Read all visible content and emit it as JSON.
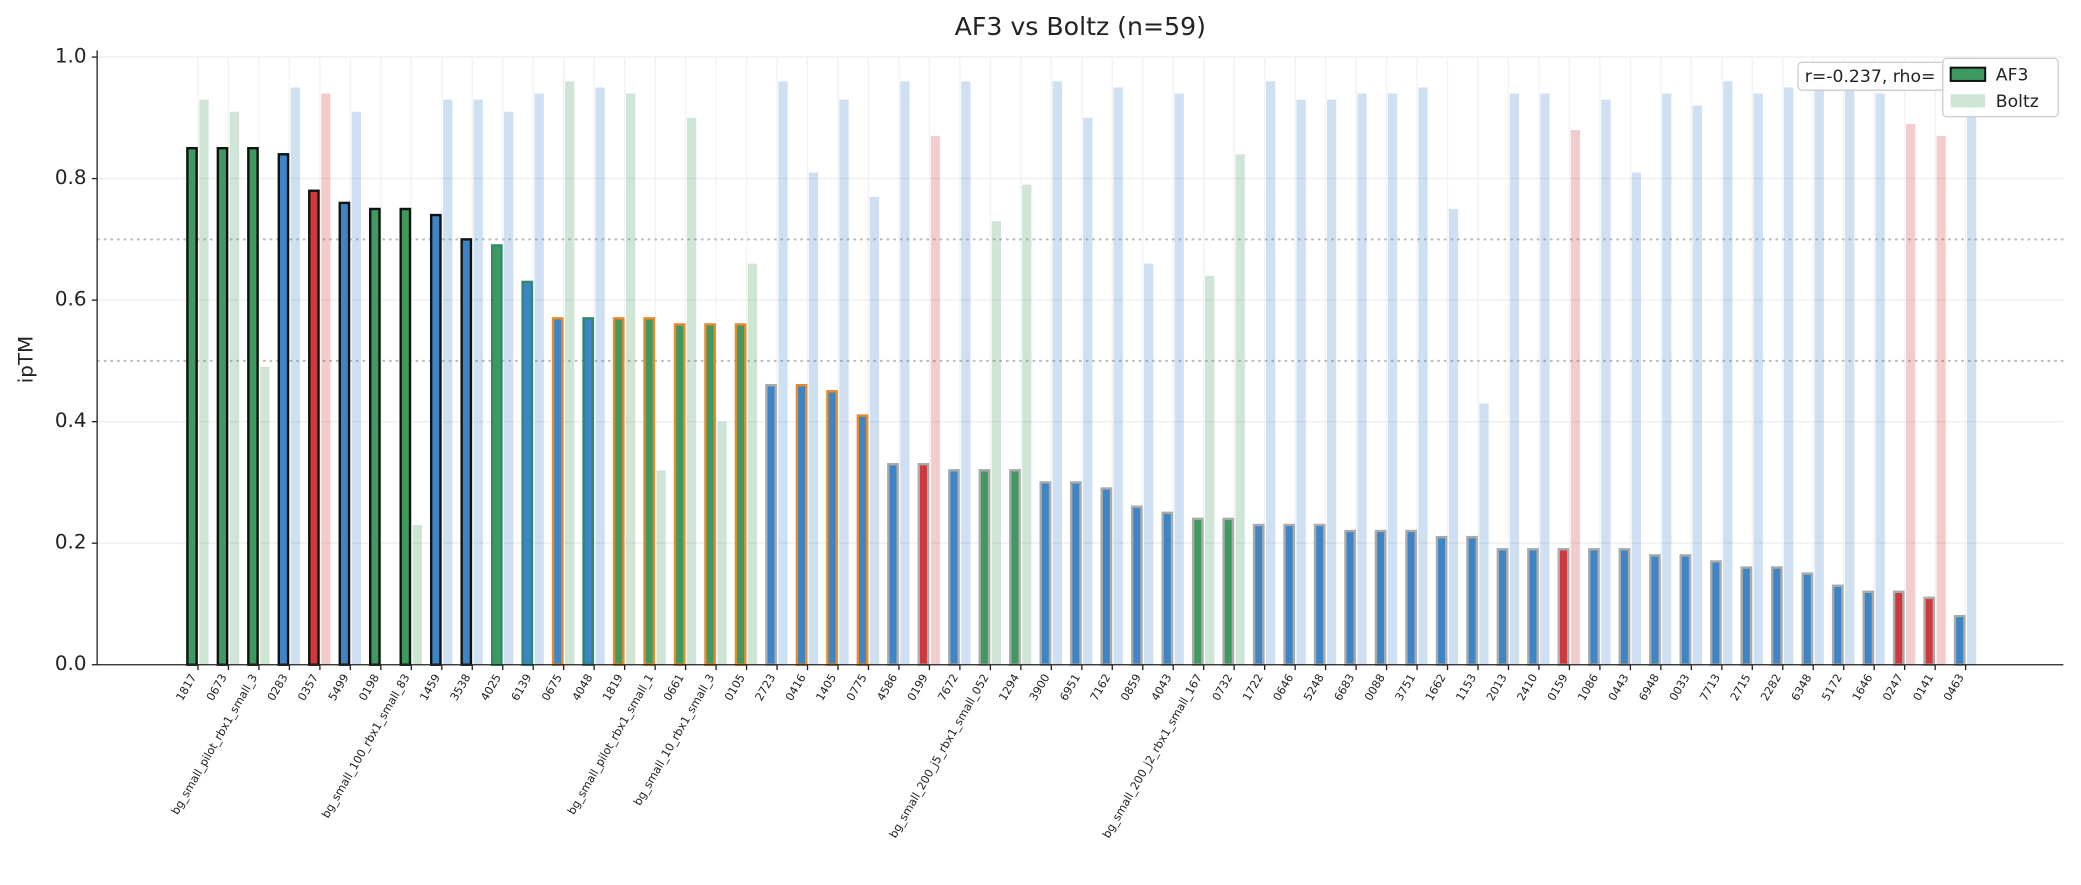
{
  "chart_data": {
    "type": "bar",
    "title": "AF3 vs Boltz (n=59)",
    "ylabel": "ipTM",
    "annotation": "r=-0.237, rho=",
    "categories": [
      "1817",
      "0673",
      "bg_small_pilot_rbx1_small_3",
      "0283",
      "0357",
      "5499",
      "0198",
      "bg_small_100_rbx1_small_83",
      "1459",
      "3538",
      "4025",
      "6139",
      "0675",
      "4048",
      "1819",
      "bg_small_pilot_rbx1_small_1",
      "0661",
      "bg_small_10_rbx1_small_3",
      "0105",
      "2723",
      "0416",
      "1405",
      "0775",
      "4586",
      "0199",
      "7672",
      "bg_small_200_j5_rbx1_small_052",
      "1294",
      "3900",
      "6951",
      "7162",
      "0859",
      "4043",
      "bg_small_200_j2_rbx1_small_167",
      "0732",
      "1722",
      "0646",
      "5248",
      "6683",
      "0088",
      "3751",
      "1662",
      "1153",
      "2013",
      "2410",
      "0159",
      "1086",
      "0443",
      "6948",
      "0033",
      "7713",
      "2715",
      "2282",
      "6348",
      "5172",
      "1646",
      "0247",
      "0141",
      "0463"
    ],
    "series": [
      {
        "name": "AF3",
        "color": "#3f9a5f",
        "opacity": 1,
        "legend_edgecolor": "#111111",
        "values": [
          0.85,
          0.85,
          0.85,
          0.84,
          0.78,
          0.76,
          0.75,
          0.75,
          0.74,
          0.7,
          0.69,
          0.63,
          0.57,
          0.57,
          0.57,
          0.57,
          0.56,
          0.56,
          0.56,
          0.46,
          0.46,
          0.45,
          0.41,
          0.33,
          0.33,
          0.32,
          0.32,
          0.32,
          0.3,
          0.3,
          0.29,
          0.26,
          0.25,
          0.24,
          0.24,
          0.23,
          0.23,
          0.23,
          0.22,
          0.22,
          0.22,
          0.21,
          0.21,
          0.19,
          0.19,
          0.19,
          0.19,
          0.19,
          0.18,
          0.18,
          0.17,
          0.16,
          0.16,
          0.15,
          0.13,
          0.12,
          0.12,
          0.11,
          0.08
        ],
        "colors": [
          "#3f9a5f",
          "#3f9a5f",
          "#3f9a5f",
          "#3d85c6",
          "#d0393b",
          "#3d85c6",
          "#3f9a5f",
          "#3f9a5f",
          "#3d85c6",
          "#3d85c6",
          "#3f9a5f",
          "#3d85c6",
          "#3d85c6",
          "#3d85c6",
          "#3f9a5f",
          "#3f9a5f",
          "#3f9a5f",
          "#3f9a5f",
          "#3f9a5f",
          "#3d85c6",
          "#3d85c6",
          "#3d85c6",
          "#3d85c6",
          "#3d85c6",
          "#d0393b",
          "#3d85c6",
          "#3f9a5f",
          "#3f9a5f",
          "#3d85c6",
          "#3d85c6",
          "#3d85c6",
          "#3d85c6",
          "#3d85c6",
          "#3f9a5f",
          "#3f9a5f",
          "#3d85c6",
          "#3d85c6",
          "#3d85c6",
          "#3d85c6",
          "#3d85c6",
          "#3d85c6",
          "#3d85c6",
          "#3d85c6",
          "#3d85c6",
          "#3d85c6",
          "#d0393b",
          "#3d85c6",
          "#3d85c6",
          "#3d85c6",
          "#3d85c6",
          "#3d85c6",
          "#3d85c6",
          "#3d85c6",
          "#3d85c6",
          "#3d85c6",
          "#3d85c6",
          "#d0393b",
          "#d0393b",
          "#3d85c6"
        ],
        "edgecolors": [
          "#111111",
          "#111111",
          "#111111",
          "#111111",
          "#111111",
          "#111111",
          "#111111",
          "#111111",
          "#111111",
          "#111111",
          "#2f8a6a",
          "#2f8a6a",
          "#e8892b",
          "#2f8a6a",
          "#e8892b",
          "#e8892b",
          "#e8892b",
          "#e8892b",
          "#e8892b",
          "#aaaaaa",
          "#e8892b",
          "#e8892b",
          "#e8892b",
          "#aaaaaa",
          "#aaaaaa",
          "#aaaaaa",
          "#aaaaaa",
          "#aaaaaa",
          "#aaaaaa",
          "#aaaaaa",
          "#aaaaaa",
          "#aaaaaa",
          "#aaaaaa",
          "#aaaaaa",
          "#aaaaaa",
          "#aaaaaa",
          "#aaaaaa",
          "#aaaaaa",
          "#aaaaaa",
          "#aaaaaa",
          "#aaaaaa",
          "#aaaaaa",
          "#aaaaaa",
          "#aaaaaa",
          "#aaaaaa",
          "#aaaaaa",
          "#aaaaaa",
          "#aaaaaa",
          "#aaaaaa",
          "#aaaaaa",
          "#aaaaaa",
          "#aaaaaa",
          "#aaaaaa",
          "#aaaaaa",
          "#aaaaaa",
          "#aaaaaa",
          "#aaaaaa",
          "#aaaaaa",
          "#aaaaaa"
        ]
      },
      {
        "name": "Boltz",
        "color": "#3f9a5f",
        "opacity": 0.25,
        "legend_edgecolor": "none",
        "values": [
          0.93,
          0.91,
          0.49,
          0.95,
          0.94,
          0.91,
          null,
          0.23,
          0.93,
          0.93,
          0.91,
          0.94,
          0.96,
          0.95,
          0.94,
          0.32,
          0.9,
          0.4,
          0.66,
          0.96,
          0.81,
          0.93,
          0.77,
          0.96,
          0.87,
          0.96,
          0.73,
          0.79,
          0.96,
          0.9,
          0.95,
          0.66,
          0.94,
          0.64,
          0.84,
          0.96,
          0.93,
          0.93,
          0.94,
          0.94,
          0.95,
          0.75,
          0.43,
          0.94,
          0.94,
          0.88,
          0.93,
          0.81,
          0.94,
          0.92,
          0.96,
          0.94,
          0.95,
          0.95,
          0.95,
          0.94,
          0.89,
          0.87,
          0.92
        ],
        "colors": [
          "#3f9a5f",
          "#3f9a5f",
          "#3f9a5f",
          "#3d85c6",
          "#d0393b",
          "#3d85c6",
          "#3d85c6",
          "#3f9a5f",
          "#3d85c6",
          "#3d85c6",
          "#3d85c6",
          "#3d85c6",
          "#3f9a5f",
          "#3d85c6",
          "#3f9a5f",
          "#3f9a5f",
          "#3f9a5f",
          "#3f9a5f",
          "#3f9a5f",
          "#3d85c6",
          "#3d85c6",
          "#3d85c6",
          "#3d85c6",
          "#3d85c6",
          "#d0393b",
          "#3d85c6",
          "#3f9a5f",
          "#3f9a5f",
          "#3d85c6",
          "#3d85c6",
          "#3d85c6",
          "#3d85c6",
          "#3d85c6",
          "#3f9a5f",
          "#3f9a5f",
          "#3d85c6",
          "#3d85c6",
          "#3d85c6",
          "#3d85c6",
          "#3d85c6",
          "#3d85c6",
          "#3d85c6",
          "#3d85c6",
          "#3d85c6",
          "#3d85c6",
          "#d0393b",
          "#3d85c6",
          "#3d85c6",
          "#3d85c6",
          "#3d85c6",
          "#3d85c6",
          "#3d85c6",
          "#3d85c6",
          "#3d85c6",
          "#3d85c6",
          "#3d85c6",
          "#d0393b",
          "#d0393b",
          "#3d85c6"
        ]
      }
    ],
    "ylim": [
      0,
      1.0
    ],
    "yticks": [
      {
        "value": 0,
        "label": "0.0"
      },
      0.2,
      0.4,
      0.6,
      0.8,
      {
        "value": 1.0,
        "label": "1.0"
      }
    ],
    "hlines": [
      0.7,
      0.5
    ],
    "grid": true,
    "legend": "upper right"
  }
}
